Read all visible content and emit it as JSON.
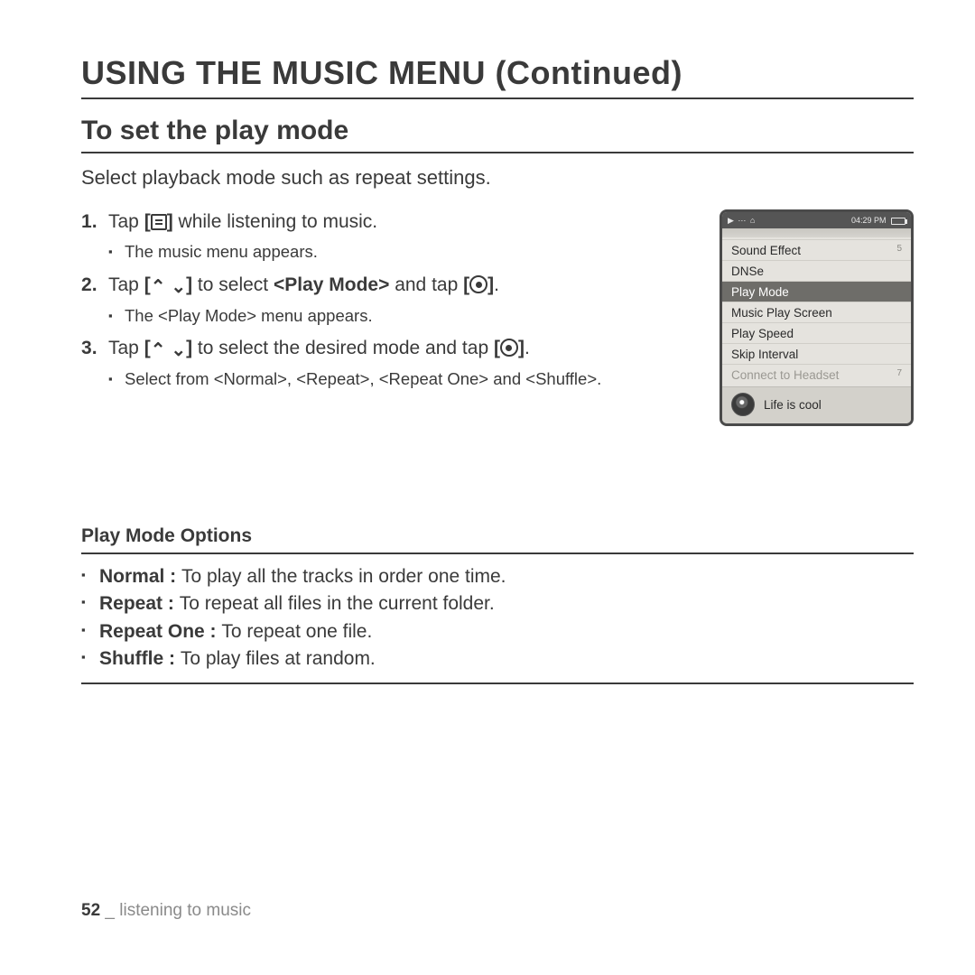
{
  "title": "USING THE MUSIC MENU (Continued)",
  "section": {
    "heading": "To set the play mode",
    "intro": "Select playback mode such as repeat settings."
  },
  "steps": [
    {
      "pre": "Tap ",
      "icon_open": "[",
      "icon": "menu",
      "icon_close": "]",
      "post": " while listening to music.",
      "subs": [
        "The music menu appears."
      ]
    },
    {
      "pre": "Tap ",
      "icon_open": "[",
      "chev_up": "⌃",
      "chev_down": "⌄",
      "icon_close": "]",
      "mid": " to select ",
      "bold1": "<Play Mode>",
      "mid2": " and tap ",
      "icon2_open": "[",
      "icon2": "target",
      "icon2_close": "]",
      "post": ".",
      "subs": [
        "The <Play Mode> menu appears."
      ]
    },
    {
      "pre": "Tap ",
      "icon_open": "[",
      "chev_up": "⌃",
      "chev_down": "⌄",
      "icon_close": "]",
      "mid": " to select the desired mode and tap ",
      "icon2_open": "[",
      "icon2": "target",
      "icon2_close": "]",
      "post": ".",
      "subs": [
        "Select from <Normal>, <Repeat>, <Repeat One> and <Shuffle>."
      ]
    }
  ],
  "device": {
    "status_left": "▶ ⋯ ⌂",
    "status_time": "04:29 PM",
    "menu": [
      {
        "label": "Sound Effect",
        "side": "5",
        "sel": false,
        "dim": false
      },
      {
        "label": "DNSe",
        "side": "",
        "sel": false,
        "dim": false
      },
      {
        "label": "Play Mode",
        "side": "",
        "sel": true,
        "dim": false
      },
      {
        "label": "Music Play Screen",
        "side": "",
        "sel": false,
        "dim": false
      },
      {
        "label": "Play Speed",
        "side": "",
        "sel": false,
        "dim": false
      },
      {
        "label": "Skip Interval",
        "side": "",
        "sel": false,
        "dim": false
      },
      {
        "label": "Connect to Headset",
        "side": "7",
        "sel": false,
        "dim": true
      }
    ],
    "now_playing": "Life is cool"
  },
  "options": {
    "heading": "Play Mode Options",
    "items": [
      {
        "name": "Normal",
        "desc": "To play all the tracks in order one time."
      },
      {
        "name": "Repeat",
        "desc": "To repeat all files in the current folder."
      },
      {
        "name": "Repeat One",
        "desc": "To repeat one file."
      },
      {
        "name": "Shuffle",
        "desc": "To play files at random."
      }
    ]
  },
  "footer": {
    "page": "52",
    "sep": " _ ",
    "chapter": "listening to music"
  }
}
